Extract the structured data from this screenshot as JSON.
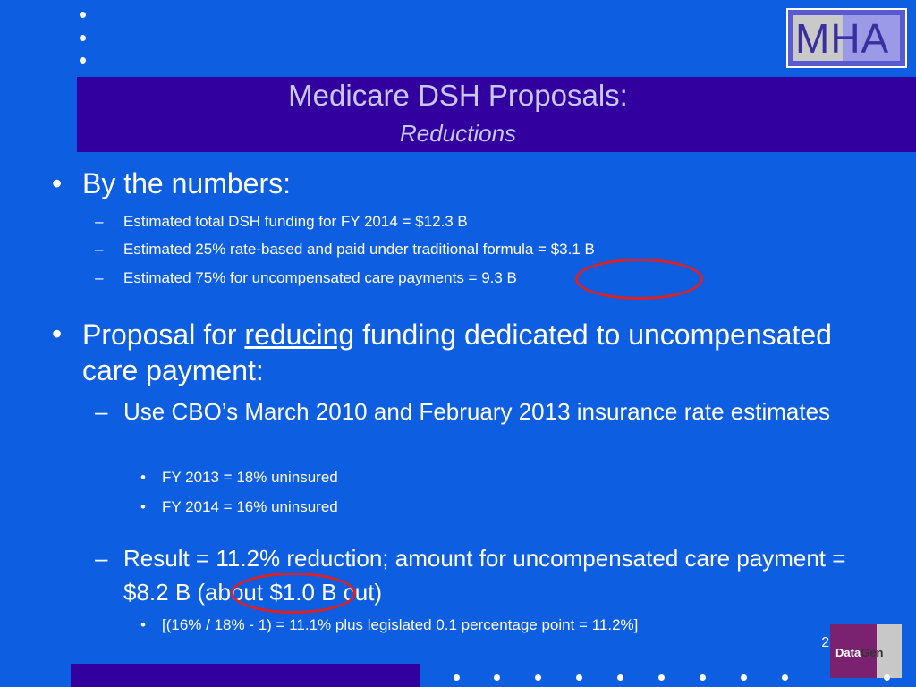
{
  "logo": {
    "text": "MHA"
  },
  "title": "Medicare DSH Proposals:",
  "subtitle": "Reductions",
  "section1": {
    "heading": "By the numbers:",
    "items": [
      "Estimated total DSH funding for FY 2014 = $12.3 B",
      "Estimated 25% rate-based and paid under traditional formula = $3.1 B",
      "Estimated 75% for uncompensated care payments = 9.3 B"
    ]
  },
  "section2": {
    "heading_pre": "Proposal for ",
    "heading_underlined": "reducing",
    "heading_post": " funding dedicated to uncompensated care payment:",
    "sub1": {
      "text": "Use CBO’s March 2010 and February 2013 insurance rate estimates",
      "items": [
        "FY 2013 = 18% uninsured",
        "FY 2014 = 16% uninsured"
      ]
    },
    "sub2": {
      "text": "Result = 11.2% reduction; amount for uncompensated care payment = $8.2 B (about $1.0 B cut)",
      "items": [
        "[(16% / 18% - 1) = 11.1% plus legislated 0.1 percentage point = 11.2%]"
      ]
    }
  },
  "page_number": "28",
  "footer_logo": {
    "part1": "Data",
    "part2": "Gen"
  },
  "colors": {
    "background": "#0d5ee0",
    "band": "#3300a0",
    "title": "#c8c8ff",
    "highlight_circle": "#e02020"
  }
}
